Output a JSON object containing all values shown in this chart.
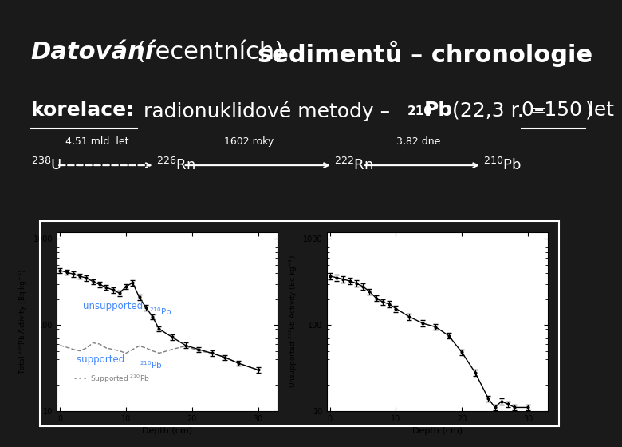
{
  "bg_color": "#1a1a1a",
  "text_color": "#ffffff",
  "blue_color": "#4488ff",
  "title_bold_italic": "Datování",
  "title_normal": " (recentních) ",
  "title_bold": "sedimentů – chronologie",
  "sub_underline": "korelace:",
  "sub_rest": " radionuklidové metody – ",
  "sub_210": "210",
  "sub_Pb": "Pb",
  "sub_end": " (22,3 r. = ",
  "sub_underline2": "0–150 let",
  "sub_close": ")",
  "chain_238U": "$^{238}$U",
  "chain_226Rn": "$^{226}$Rn",
  "chain_222Rn": "$^{222}$Rn",
  "chain_210Pb": "$^{210}$Pb",
  "hl1": "4,51 mld. let",
  "hl2": "1602 roky",
  "hl3": "3,82 dne",
  "xlabel": "Depth (cm)",
  "ylabel_left": "Total $^{210}$Pb Activity (Bq kg$^{-1}$)",
  "ylabel_right": "Unsupported $^{210}$Pb Activity (Bc kg$^{-1}$)",
  "label_unsupported": "unsupported ",
  "label_unsup_super": "$^{210}$Pb",
  "label_supported": "supported ",
  "label_sup_super": "$^{210}$Pb",
  "legend_supported": "- - -  Supported $^{210}$Pb"
}
